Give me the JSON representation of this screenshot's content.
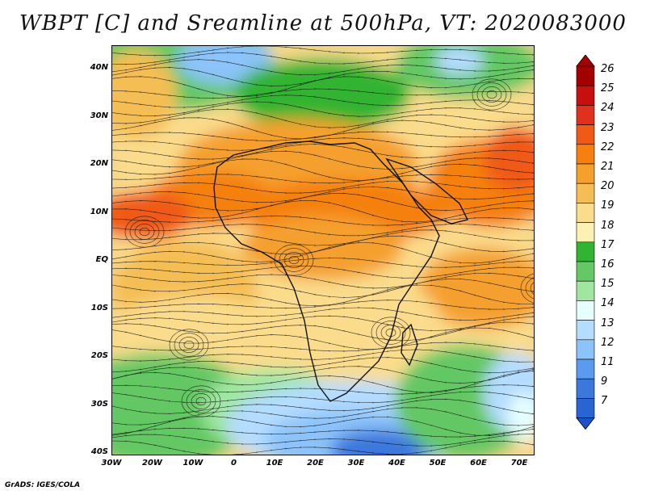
{
  "title": "WBPT [C] and Sreamline at 500hPa, VT: 2020083000",
  "footer": "GrADS: IGES/COLA",
  "lat_labels": [
    "40N",
    "30N",
    "20N",
    "10N",
    "EQ",
    "10S",
    "20S",
    "30S",
    "40S"
  ],
  "lon_labels": [
    "30W",
    "20W",
    "10W",
    "0",
    "10E",
    "20E",
    "30E",
    "40E",
    "50E",
    "60E",
    "70E"
  ],
  "colorbar": {
    "labels": [
      "26",
      "25",
      "24",
      "23",
      "22",
      "21",
      "20",
      "19",
      "18",
      "17",
      "16",
      "15",
      "14",
      "13",
      "12",
      "11",
      "9",
      "7"
    ],
    "colors": [
      "#a50000",
      "#c80f0f",
      "#e0301e",
      "#f05a14",
      "#f5800f",
      "#f5a02d",
      "#f5be55",
      "#fadc8c",
      "#fff0b4",
      "#32b432",
      "#64c864",
      "#a0e6a0",
      "#e6ffff",
      "#b4dcff",
      "#8cc3fa",
      "#5a9bf0",
      "#3c78dc",
      "#2864d2",
      "#1e50c8"
    ]
  },
  "map": {
    "lat_range": [
      -40,
      45
    ],
    "lon_range": [
      -30,
      75
    ],
    "colors": {
      "green_dark": "#32b432",
      "green_mid": "#64c864",
      "green_light": "#a0e6a0",
      "pale_cyan": "#e6ffff",
      "blue_light": "#b4dcff",
      "blue_mid": "#8cc3fa",
      "blue_dark": "#3c78dc",
      "cream": "#fff0b4",
      "light_orange": "#fadc8c",
      "mid_orange": "#f5be55",
      "orange": "#f5a02d",
      "dark_orange": "#f5800f",
      "red_orange": "#f05a14",
      "red": "#e0301e"
    }
  }
}
